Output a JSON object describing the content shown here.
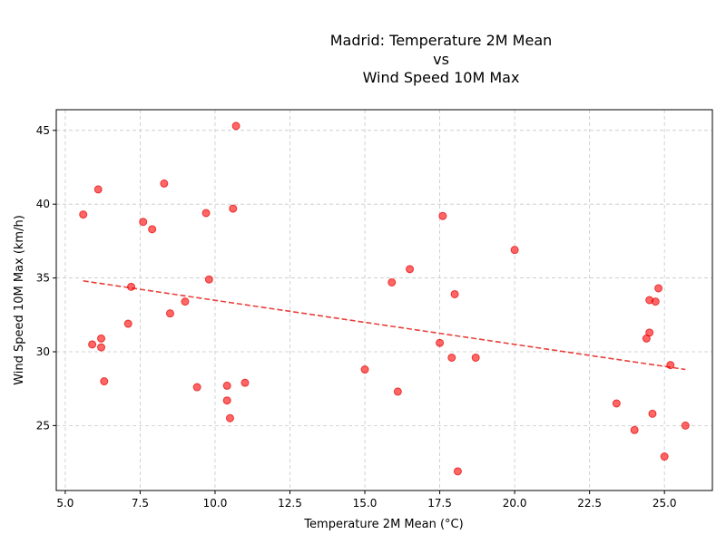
{
  "chart_data": {
    "type": "scatter",
    "title_lines": [
      "Madrid: Temperature 2M Mean",
      "vs",
      "Wind Speed 10M Max"
    ],
    "xlabel": "Temperature 2M Mean (°C)",
    "ylabel": "Wind Speed 10M Max (km/h)",
    "xlim": [
      4.7,
      26.6
    ],
    "ylim": [
      20.6,
      46.4
    ],
    "xticks": [
      5.0,
      7.5,
      10.0,
      12.5,
      15.0,
      17.5,
      20.0,
      22.5,
      25.0
    ],
    "xtick_labels": [
      "5.0",
      "7.5",
      "10.0",
      "12.5",
      "15.0",
      "17.5",
      "20.0",
      "22.5",
      "25.0"
    ],
    "yticks": [
      25,
      30,
      35,
      40,
      45
    ],
    "ytick_labels": [
      "25",
      "30",
      "35",
      "40",
      "45"
    ],
    "grid": true,
    "point_color": "#ff0000",
    "trend_color": "#e8403a",
    "points": [
      {
        "x": 5.6,
        "y": 39.3
      },
      {
        "x": 6.1,
        "y": 41.0
      },
      {
        "x": 5.9,
        "y": 30.5
      },
      {
        "x": 6.2,
        "y": 30.9
      },
      {
        "x": 6.2,
        "y": 30.3
      },
      {
        "x": 6.3,
        "y": 28.0
      },
      {
        "x": 7.1,
        "y": 31.9
      },
      {
        "x": 7.2,
        "y": 34.4
      },
      {
        "x": 7.6,
        "y": 38.8
      },
      {
        "x": 7.9,
        "y": 38.3
      },
      {
        "x": 8.3,
        "y": 41.4
      },
      {
        "x": 8.5,
        "y": 32.6
      },
      {
        "x": 9.0,
        "y": 33.4
      },
      {
        "x": 9.4,
        "y": 27.6
      },
      {
        "x": 9.7,
        "y": 39.4
      },
      {
        "x": 9.8,
        "y": 34.9
      },
      {
        "x": 10.4,
        "y": 27.7
      },
      {
        "x": 10.4,
        "y": 26.7
      },
      {
        "x": 10.5,
        "y": 25.5
      },
      {
        "x": 10.6,
        "y": 39.7
      },
      {
        "x": 10.7,
        "y": 45.3
      },
      {
        "x": 11.0,
        "y": 27.9
      },
      {
        "x": 15.0,
        "y": 28.8
      },
      {
        "x": 15.9,
        "y": 34.7
      },
      {
        "x": 16.1,
        "y": 27.3
      },
      {
        "x": 16.5,
        "y": 35.6
      },
      {
        "x": 17.5,
        "y": 30.6
      },
      {
        "x": 17.6,
        "y": 39.2
      },
      {
        "x": 17.9,
        "y": 29.6
      },
      {
        "x": 18.0,
        "y": 33.9
      },
      {
        "x": 18.1,
        "y": 21.9
      },
      {
        "x": 18.7,
        "y": 29.6
      },
      {
        "x": 20.0,
        "y": 36.9
      },
      {
        "x": 23.4,
        "y": 26.5
      },
      {
        "x": 24.0,
        "y": 24.7
      },
      {
        "x": 24.4,
        "y": 30.9
      },
      {
        "x": 24.5,
        "y": 33.5
      },
      {
        "x": 24.5,
        "y": 31.3
      },
      {
        "x": 24.6,
        "y": 25.8
      },
      {
        "x": 24.7,
        "y": 33.4
      },
      {
        "x": 24.8,
        "y": 34.3
      },
      {
        "x": 25.0,
        "y": 22.9
      },
      {
        "x": 25.2,
        "y": 29.1
      },
      {
        "x": 25.7,
        "y": 25.0
      }
    ],
    "trendline": {
      "x": [
        5.6,
        25.7
      ],
      "y": [
        34.8,
        28.8
      ]
    }
  }
}
